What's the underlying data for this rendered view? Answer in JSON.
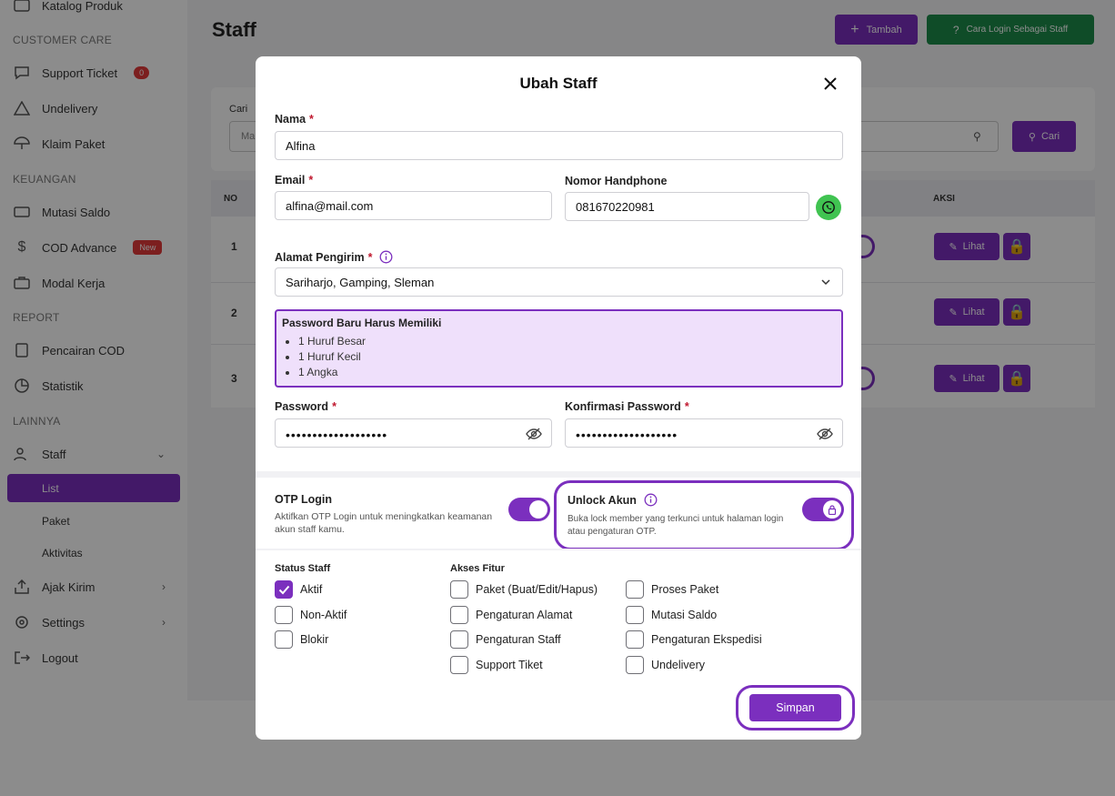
{
  "sidebar": {
    "top_item": "Katalog Produk",
    "sections": {
      "customer_care": "CUSTOMER CARE",
      "keuangan": "KEUANGAN",
      "report": "REPORT",
      "lainnya": "LAINNYA"
    },
    "items": {
      "support_ticket": "Support Ticket",
      "support_ticket_badge": "0",
      "undelivery": "Undelivery",
      "klaim_paket": "Klaim Paket",
      "mutasi_saldo": "Mutasi Saldo",
      "cod_advance": "COD Advance",
      "cod_advance_badge": "New",
      "modal_kerja": "Modal Kerja",
      "pencairan_cod": "Pencairan COD",
      "statistik": "Statistik",
      "staff": "Staff",
      "staff_list": "List",
      "staff_paket": "Paket",
      "staff_aktivitas": "Aktivitas",
      "ajak_kirim": "Ajak Kirim",
      "settings": "Settings",
      "logout": "Logout"
    }
  },
  "page": {
    "title": "Staff",
    "add_button": "Tambah",
    "cara_login_button": "Cara Login Sebagai Staff",
    "search_label": "Cari",
    "search_placeholder": "Ma",
    "search_button": "Cari",
    "table": {
      "col_no": "NO",
      "col_aksi": "AKSI",
      "rows": [
        "1",
        "2",
        "3"
      ],
      "view_label": "Lihat"
    }
  },
  "modal": {
    "title": "Ubah Staff",
    "nama_label": "Nama",
    "nama_value": "Alfina",
    "email_label": "Email",
    "email_value": "alfina@mail.com",
    "phone_label": "Nomor Handphone",
    "phone_value": "081670220981",
    "alamat_label": "Alamat Pengirim",
    "alamat_value": "Sariharjo, Gamping, Sleman",
    "required_mark": "*",
    "pw_rules": {
      "title": "Password Baru Harus Memiliki",
      "items": [
        "1 Huruf Besar",
        "1 Huruf Kecil",
        "1 Angka"
      ]
    },
    "password_label": "Password",
    "password_mask": "•••••••••••••••••••",
    "confirm_label": "Konfirmasi Password",
    "confirm_mask": "•••••••••••••••••••",
    "otp": {
      "title": "OTP Login",
      "desc": "Aktifkan OTP Login untuk meningkatkan keamanan akun staff kamu."
    },
    "unlock": {
      "title": "Unlock Akun",
      "desc": "Buka lock member yang terkunci untuk halaman login atau pengaturan OTP."
    },
    "status_title": "Status Staff",
    "status_options": [
      {
        "label": "Aktif",
        "checked": true
      },
      {
        "label": "Non-Aktif",
        "checked": false
      },
      {
        "label": "Blokir",
        "checked": false
      }
    ],
    "akses_title": "Akses Fitur",
    "akses_col1": [
      "Paket (Buat/Edit/Hapus)",
      "Pengaturan Alamat",
      "Pengaturan Staff",
      "Support Tiket"
    ],
    "akses_col2": [
      "Proses Paket",
      "Mutasi Saldo",
      "Pengaturan Ekspedisi",
      "Undelivery"
    ],
    "save_button": "Simpan"
  },
  "colors": {
    "accent": "#7b2fbe",
    "accent_light": "#efe0fb",
    "required": "#c0182e",
    "whatsapp": "#40c351"
  }
}
